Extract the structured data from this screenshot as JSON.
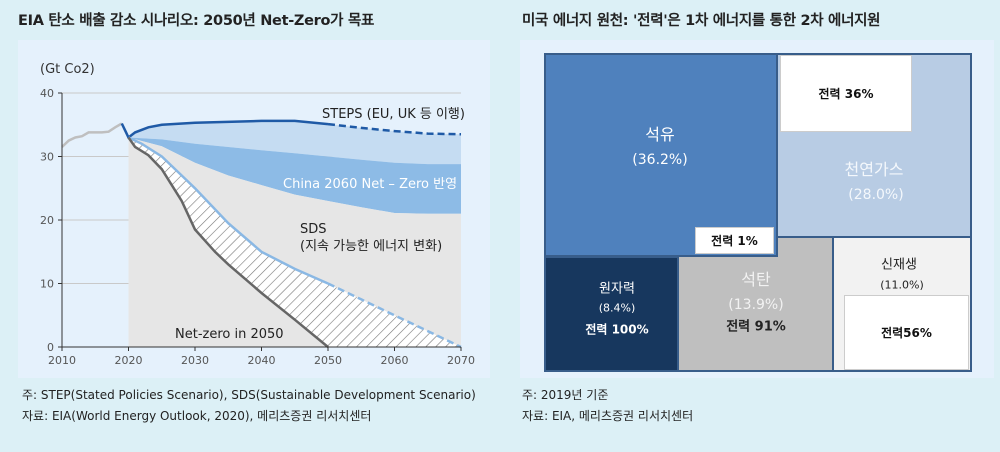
{
  "left": {
    "title": "EIA 탄소 배출 감소 시나리오: 2050년 Net-Zero가 목표",
    "note": "주: STEP(Stated Policies Scenario), SDS(Sustainable Development Scenario)",
    "source": "자료: EIA(World Energy Outlook, 2020), 메리츠증권 리서치센터"
  },
  "right": {
    "title": "미국 에너지 원천: '전력'은 1차 에너지를 통한 2차 에너지원",
    "note": "주: 2019년 기준",
    "source": "자료: EIA, 메리츠증권 리서치센터"
  },
  "chart_data": [
    {
      "type": "area",
      "ylabel": "(Gt Co2)",
      "xlim": [
        2010,
        2070
      ],
      "ylim": [
        0,
        40
      ],
      "x_ticks": [
        "2010",
        "2020",
        "2030",
        "2040",
        "2050",
        "2060",
        "2070"
      ],
      "y_ticks": [
        "0",
        "10",
        "20",
        "30",
        "40"
      ],
      "grid": "horizontal",
      "dashed_from": 2050,
      "colors": {
        "history": "#bfbfbf",
        "steps": "#1f5aa6",
        "steps_band": "#c5dcf2",
        "china_band": "#8dbbe6",
        "sds_area": "#e6e6e6",
        "sds_line": "#8ab8e4",
        "netzero": "#666666"
      },
      "annotations": {
        "steps": "STEPS (EU, UK 등 이행)",
        "china": "China 2060 Net – Zero 반영",
        "sds": "SDS",
        "sds_sub": "(지속 가능한 에너지 변화)",
        "netzero": "Net-zero in 2050"
      },
      "series": {
        "history": [
          [
            2010,
            31.5
          ],
          [
            2011,
            32.5
          ],
          [
            2012,
            33
          ],
          [
            2013,
            33.2
          ],
          [
            2014,
            33.8
          ],
          [
            2015,
            33.8
          ],
          [
            2016,
            33.8
          ],
          [
            2017,
            33.9
          ],
          [
            2018,
            34.6
          ],
          [
            2019,
            35.2
          ]
        ],
        "steps": [
          [
            2019,
            35.2
          ],
          [
            2020,
            33
          ],
          [
            2021,
            33.8
          ],
          [
            2023,
            34.6
          ],
          [
            2025,
            35
          ],
          [
            2030,
            35.3
          ],
          [
            2040,
            35.6
          ],
          [
            2045,
            35.6
          ],
          [
            2050,
            35.1
          ],
          [
            2055,
            34.5
          ],
          [
            2060,
            34
          ],
          [
            2065,
            33.6
          ],
          [
            2070,
            33.5
          ]
        ],
        "steps_band_low": [
          [
            2020,
            33
          ],
          [
            2025,
            32.7
          ],
          [
            2030,
            32
          ],
          [
            2035,
            31.5
          ],
          [
            2040,
            31
          ],
          [
            2045,
            30.5
          ],
          [
            2050,
            30
          ],
          [
            2055,
            29.5
          ],
          [
            2060,
            29
          ],
          [
            2065,
            28.8
          ],
          [
            2070,
            28.8
          ]
        ],
        "china": [
          [
            2020,
            33
          ],
          [
            2025,
            31.6
          ],
          [
            2030,
            29
          ],
          [
            2035,
            27
          ],
          [
            2040,
            25.5
          ],
          [
            2045,
            24
          ],
          [
            2050,
            23
          ],
          [
            2055,
            22
          ],
          [
            2060,
            21.1
          ],
          [
            2065,
            21
          ],
          [
            2070,
            21
          ]
        ],
        "sds": [
          [
            2020,
            33
          ],
          [
            2022,
            32
          ],
          [
            2025,
            30
          ],
          [
            2028,
            27
          ],
          [
            2030,
            25
          ],
          [
            2035,
            19.5
          ],
          [
            2040,
            15
          ],
          [
            2045,
            12.3
          ],
          [
            2050,
            10
          ],
          [
            2055,
            7.5
          ],
          [
            2060,
            5
          ],
          [
            2065,
            2.5
          ],
          [
            2070,
            0
          ]
        ],
        "netzero": [
          [
            2020,
            33
          ],
          [
            2021,
            31.5
          ],
          [
            2023,
            30.2
          ],
          [
            2025,
            28
          ],
          [
            2028,
            23
          ],
          [
            2030,
            18.5
          ],
          [
            2033,
            15
          ],
          [
            2035,
            13
          ],
          [
            2040,
            8.5
          ],
          [
            2045,
            4.3
          ],
          [
            2050,
            0
          ]
        ]
      }
    },
    {
      "type": "treemap",
      "items": [
        {
          "name": "석유",
          "share": "(36.2%)",
          "power": "전력 1%",
          "value": 36.2,
          "color": "#4f81bd"
        },
        {
          "name": "천연가스",
          "share": "(28.0%)",
          "power": "전력 36%",
          "value": 28.0,
          "color": "#b8cce4"
        },
        {
          "name": "석탄",
          "share": "(13.9%)",
          "power": "전력 91%",
          "value": 13.9,
          "color": "#bfbfbf"
        },
        {
          "name": "신재생",
          "share": "(11.0%)",
          "power": "전력56%",
          "value": 11.0,
          "color": "#f2f2f2"
        },
        {
          "name": "원자력",
          "share": "(8.4%)",
          "power": "전력 100%",
          "value": 8.4,
          "color": "#17375e"
        }
      ]
    }
  ]
}
